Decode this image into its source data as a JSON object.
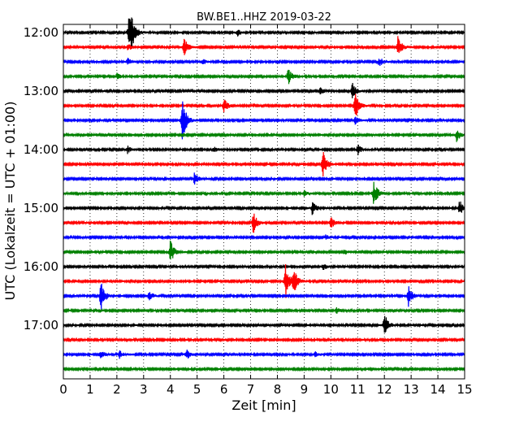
{
  "chart_data": {
    "type": "line",
    "title": "BW.BE1..HHZ 2019-03-22",
    "xlabel": "Zeit  [min]",
    "ylabel": "UTC (Lokalzeit = UTC + 01:00)",
    "xlim": [
      0,
      15
    ],
    "x_ticks": [
      "0",
      "1",
      "2",
      "3",
      "4",
      "5",
      "6",
      "7",
      "8",
      "9",
      "10",
      "11",
      "12",
      "13",
      "14",
      "15"
    ],
    "y_tick_labels": [
      "12:00",
      "13:00",
      "14:00",
      "15:00",
      "16:00",
      "17:00"
    ],
    "grid": "vertical dotted",
    "color_cycle": [
      "#000000",
      "#ff0000",
      "#0000ff",
      "#008000"
    ],
    "traces": [
      {
        "time": "12:00",
        "color": "#000000",
        "events": [
          {
            "x": 2.45,
            "amp": 1.2
          },
          {
            "x": 2.55,
            "amp": 0.9
          },
          {
            "x": 6.5,
            "amp": 0.25
          }
        ]
      },
      {
        "time": "12:15",
        "color": "#ff0000",
        "events": [
          {
            "x": 2.4,
            "amp": 0.25
          },
          {
            "x": 4.5,
            "amp": 0.7
          },
          {
            "x": 12.5,
            "amp": 0.8
          }
        ]
      },
      {
        "time": "12:30",
        "color": "#0000ff",
        "events": [
          {
            "x": 2.4,
            "amp": 0.25
          },
          {
            "x": 5.2,
            "amp": 0.2
          },
          {
            "x": 11.8,
            "amp": 0.35
          }
        ]
      },
      {
        "time": "12:45",
        "color": "#008000",
        "events": [
          {
            "x": 2.0,
            "amp": 0.2
          },
          {
            "x": 8.4,
            "amp": 0.6
          }
        ]
      },
      {
        "time": "13:00",
        "color": "#000000",
        "events": [
          {
            "x": 9.6,
            "amp": 0.25
          },
          {
            "x": 10.8,
            "amp": 0.6
          }
        ]
      },
      {
        "time": "13:15",
        "color": "#ff0000",
        "events": [
          {
            "x": 6.0,
            "amp": 0.5
          },
          {
            "x": 10.9,
            "amp": 1.1
          }
        ]
      },
      {
        "time": "13:30",
        "color": "#0000ff",
        "events": [
          {
            "x": 4.45,
            "amp": 1.6
          },
          {
            "x": 10.9,
            "amp": 0.3
          }
        ]
      },
      {
        "time": "13:45",
        "color": "#008000",
        "events": [
          {
            "x": 14.7,
            "amp": 0.45
          }
        ]
      },
      {
        "time": "14:00",
        "color": "#000000",
        "events": [
          {
            "x": 2.4,
            "amp": 0.25
          },
          {
            "x": 5.6,
            "amp": 0.2
          },
          {
            "x": 11.0,
            "amp": 0.4
          }
        ]
      },
      {
        "time": "14:15",
        "color": "#ff0000",
        "events": [
          {
            "x": 9.7,
            "amp": 1.1
          }
        ]
      },
      {
        "time": "14:30",
        "color": "#0000ff",
        "events": [
          {
            "x": 4.9,
            "amp": 0.45
          }
        ]
      },
      {
        "time": "14:45",
        "color": "#008000",
        "events": [
          {
            "x": 9.0,
            "amp": 0.2
          },
          {
            "x": 11.6,
            "amp": 1.0
          }
        ]
      },
      {
        "time": "15:00",
        "color": "#000000",
        "events": [
          {
            "x": 9.3,
            "amp": 0.5
          },
          {
            "x": 14.8,
            "amp": 0.6
          }
        ]
      },
      {
        "time": "15:15",
        "color": "#ff0000",
        "events": [
          {
            "x": 7.1,
            "amp": 0.8
          },
          {
            "x": 10.0,
            "amp": 0.4
          }
        ]
      },
      {
        "time": "15:30",
        "color": "#0000ff",
        "events": [
          {
            "x": 9.8,
            "amp": 0.15
          }
        ]
      },
      {
        "time": "15:45",
        "color": "#008000",
        "events": [
          {
            "x": 4.0,
            "amp": 0.85
          },
          {
            "x": 10.5,
            "amp": 0.2
          }
        ]
      },
      {
        "time": "16:00",
        "color": "#000000",
        "events": [
          {
            "x": 9.7,
            "amp": 0.25
          }
        ]
      },
      {
        "time": "16:15",
        "color": "#ff0000",
        "events": [
          {
            "x": 8.3,
            "amp": 1.3
          },
          {
            "x": 8.6,
            "amp": 0.9
          }
        ]
      },
      {
        "time": "16:30",
        "color": "#0000ff",
        "events": [
          {
            "x": 1.4,
            "amp": 1.1
          },
          {
            "x": 3.2,
            "amp": 0.4
          },
          {
            "x": 12.9,
            "amp": 0.7
          }
        ]
      },
      {
        "time": "16:45",
        "color": "#008000",
        "events": [
          {
            "x": 10.2,
            "amp": 0.2
          }
        ]
      },
      {
        "time": "17:00",
        "color": "#000000",
        "events": [
          {
            "x": 12.0,
            "amp": 0.9
          }
        ]
      },
      {
        "time": "17:15",
        "color": "#ff0000",
        "events": []
      },
      {
        "time": "17:30",
        "color": "#0000ff",
        "events": [
          {
            "x": 1.4,
            "amp": 0.3
          },
          {
            "x": 2.1,
            "amp": 0.25
          },
          {
            "x": 4.6,
            "amp": 0.4
          },
          {
            "x": 9.4,
            "amp": 0.2
          }
        ]
      },
      {
        "time": "17:45",
        "color": "#008000",
        "events": []
      }
    ]
  }
}
